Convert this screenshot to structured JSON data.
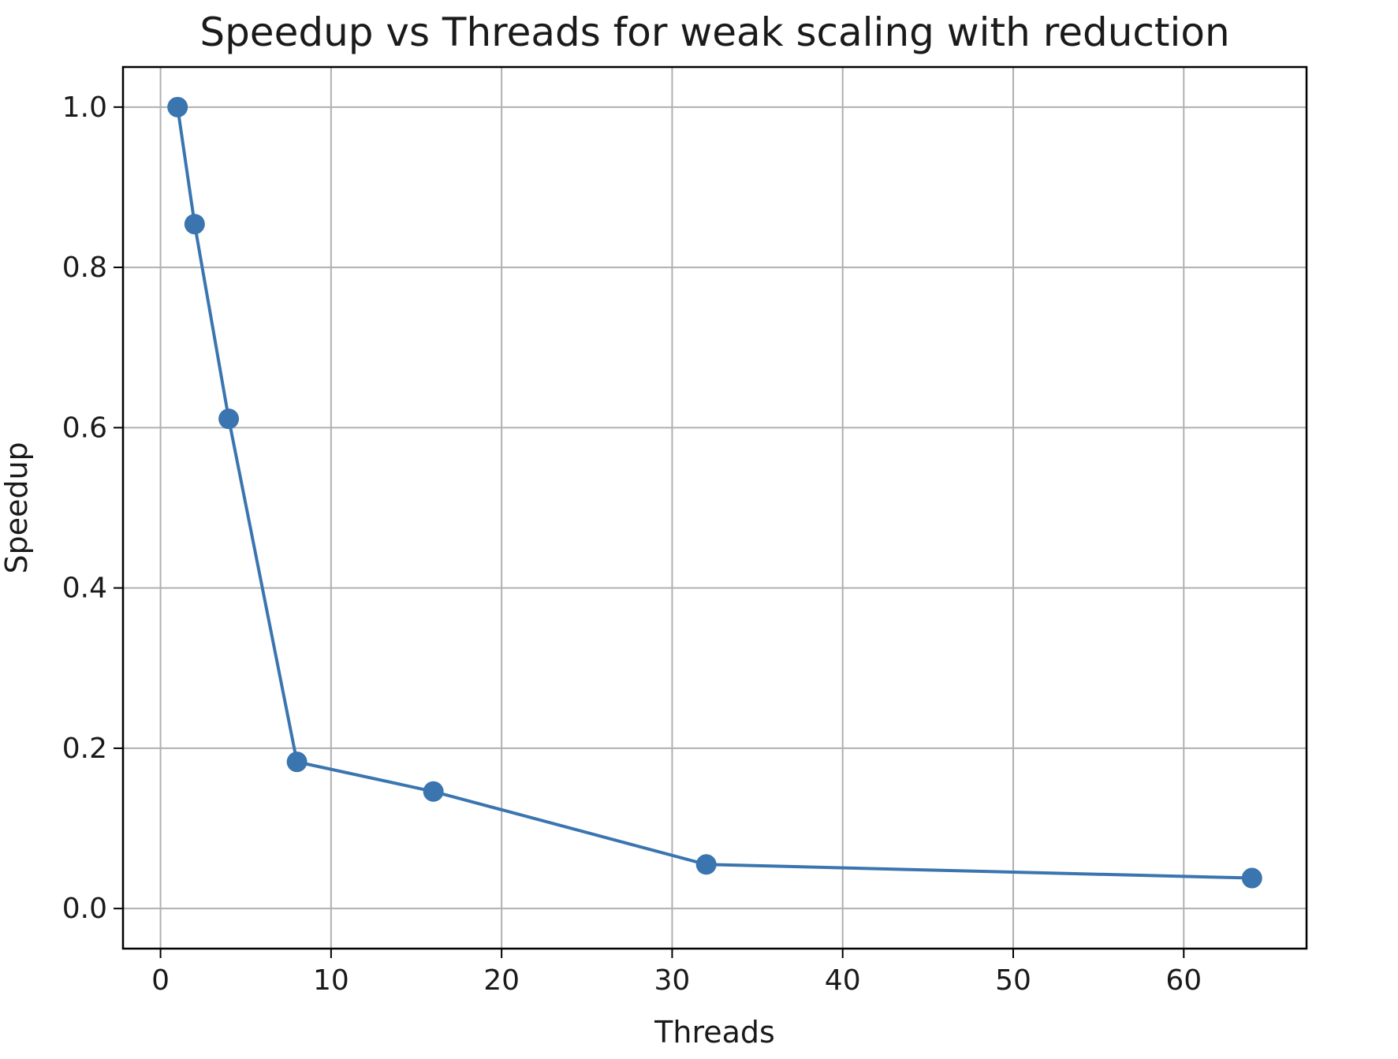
{
  "chart_data": {
    "type": "line",
    "title": "Speedup vs Threads for weak scaling with reduction",
    "xlabel": "Threads",
    "ylabel": "Speedup",
    "xlim": [
      -2.2,
      67.2
    ],
    "ylim": [
      -0.05,
      1.05
    ],
    "xticks": [
      0,
      10,
      20,
      30,
      40,
      50,
      60
    ],
    "xtick_labels": [
      "0",
      "10",
      "20",
      "30",
      "40",
      "50",
      "60"
    ],
    "yticks": [
      0.0,
      0.2,
      0.4,
      0.6,
      0.8,
      1.0
    ],
    "ytick_labels": [
      "0.0",
      "0.2",
      "0.4",
      "0.6",
      "0.8",
      "1.0"
    ],
    "grid": true,
    "series": [
      {
        "x": [
          1,
          2,
          4,
          8,
          16,
          32,
          64
        ],
        "y": [
          1.0,
          0.854,
          0.611,
          0.183,
          0.146,
          0.055,
          0.038
        ],
        "color": "#3a75b0",
        "marker": "circle"
      }
    ]
  }
}
